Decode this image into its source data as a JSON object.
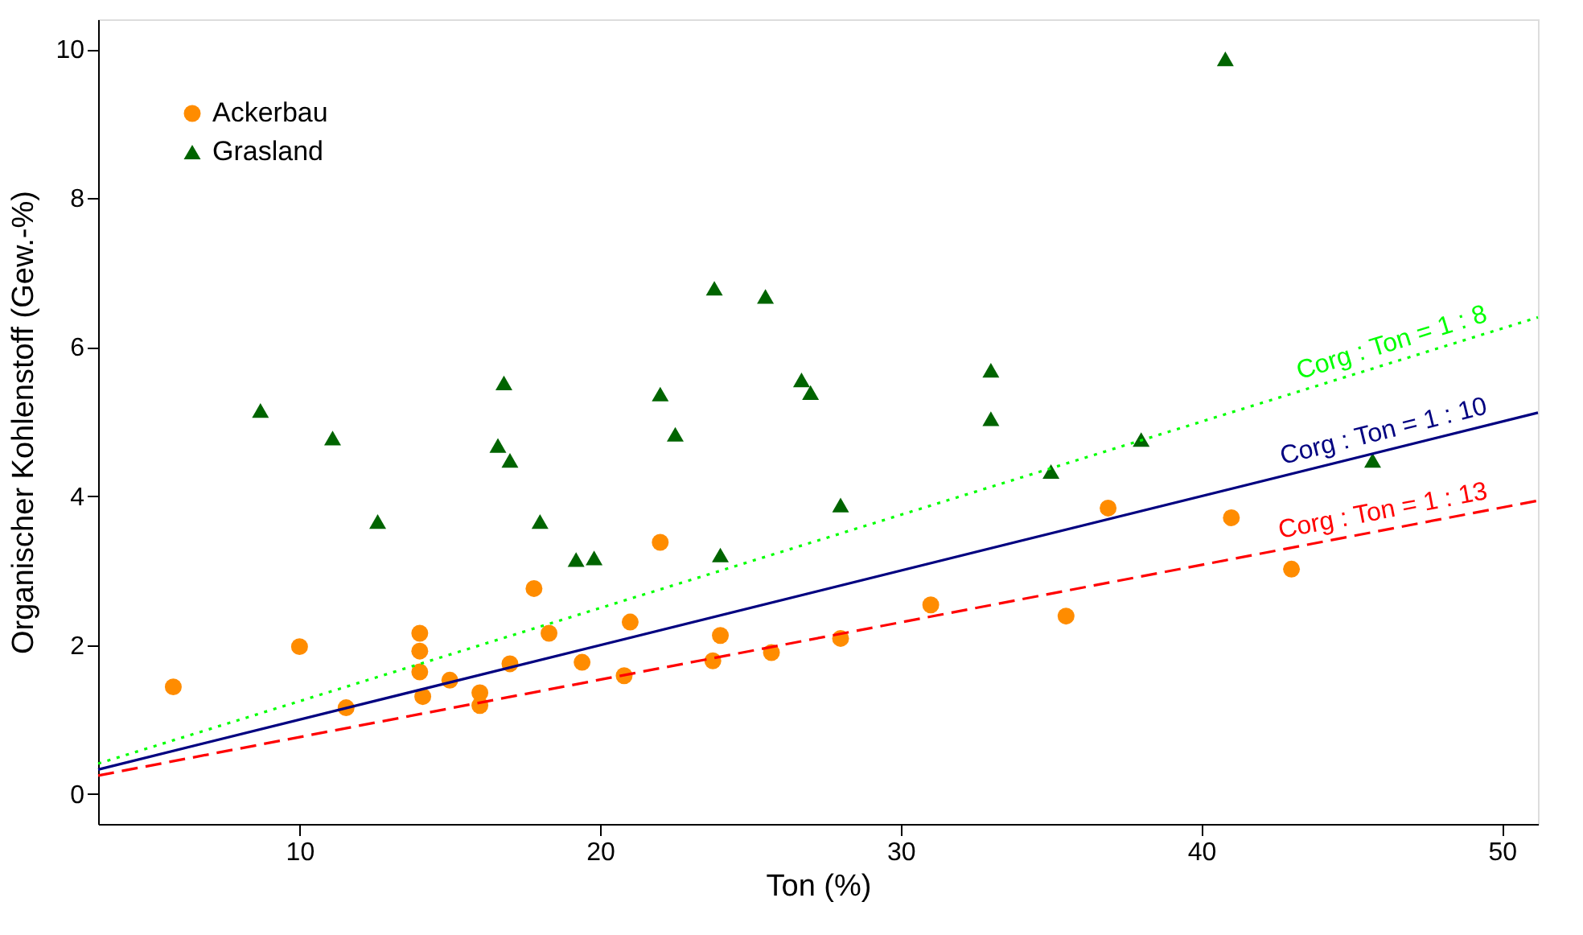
{
  "chart_data": {
    "type": "scatter",
    "xlabel": "Ton (%)",
    "ylabel": "Organischer Kohlenstoff (Gew.-%)",
    "xlim": [
      3.3,
      51.2
    ],
    "ylim": [
      -0.4,
      10.4
    ],
    "xticks": [
      10,
      20,
      30,
      40,
      50
    ],
    "yticks": [
      0,
      2,
      4,
      6,
      8,
      10
    ],
    "grid": false,
    "legend": "top left",
    "series": [
      {
        "name": "Ackerbau",
        "marker": "circle",
        "color": "#ff8c00",
        "x": [
          5.8,
          10.0,
          11.55,
          14.0,
          14.0,
          14.0,
          14.1,
          15.0,
          16.0,
          16.0,
          17.0,
          17.8,
          18.3,
          19.4,
          20.8,
          21.0,
          22.0,
          23.75,
          24.0,
          25.7,
          28.0,
          31.0,
          35.5,
          36.9,
          41.0,
          43.0
        ],
        "values": [
          1.44,
          1.98,
          1.16,
          2.16,
          1.92,
          1.64,
          1.31,
          1.53,
          1.36,
          1.19,
          1.75,
          2.76,
          2.16,
          1.77,
          1.59,
          2.31,
          3.38,
          1.79,
          2.13,
          1.9,
          2.09,
          2.54,
          2.39,
          3.84,
          3.71,
          3.02
        ]
      },
      {
        "name": "Grasland",
        "marker": "triangle",
        "color": "#006400",
        "x": [
          8.7,
          11.1,
          12.6,
          16.8,
          16.6,
          17.0,
          18.0,
          19.2,
          19.8,
          22.0,
          22.5,
          23.8,
          24.0,
          25.5,
          26.7,
          27.0,
          28.0,
          33.0,
          33.0,
          35.0,
          38.0,
          40.8,
          45.7
        ],
        "values": [
          5.15,
          4.78,
          3.66,
          5.52,
          4.68,
          4.48,
          3.66,
          3.15,
          3.17,
          5.37,
          4.83,
          6.79,
          3.21,
          6.68,
          5.56,
          5.39,
          3.88,
          5.69,
          5.04,
          4.33,
          4.76,
          9.87,
          4.48
        ]
      },
      {
        "name": "Corg : Ton = 1 : 8",
        "type": "line",
        "line_style": "dotted",
        "color": "#00ff00",
        "x": [
          3.3,
          51.2
        ],
        "values": [
          0.41,
          6.4
        ]
      },
      {
        "name": "Corg : Ton = 1 : 10",
        "type": "line",
        "line_style": "solid",
        "color": "#000080",
        "x": [
          3.3,
          51.2
        ],
        "values": [
          0.33,
          5.12
        ]
      },
      {
        "name": "Corg : Ton = 1 : 13",
        "type": "line",
        "line_style": "dashed",
        "color": "#ff0000",
        "x": [
          3.3,
          51.2
        ],
        "values": [
          0.25,
          3.94
        ]
      }
    ]
  }
}
